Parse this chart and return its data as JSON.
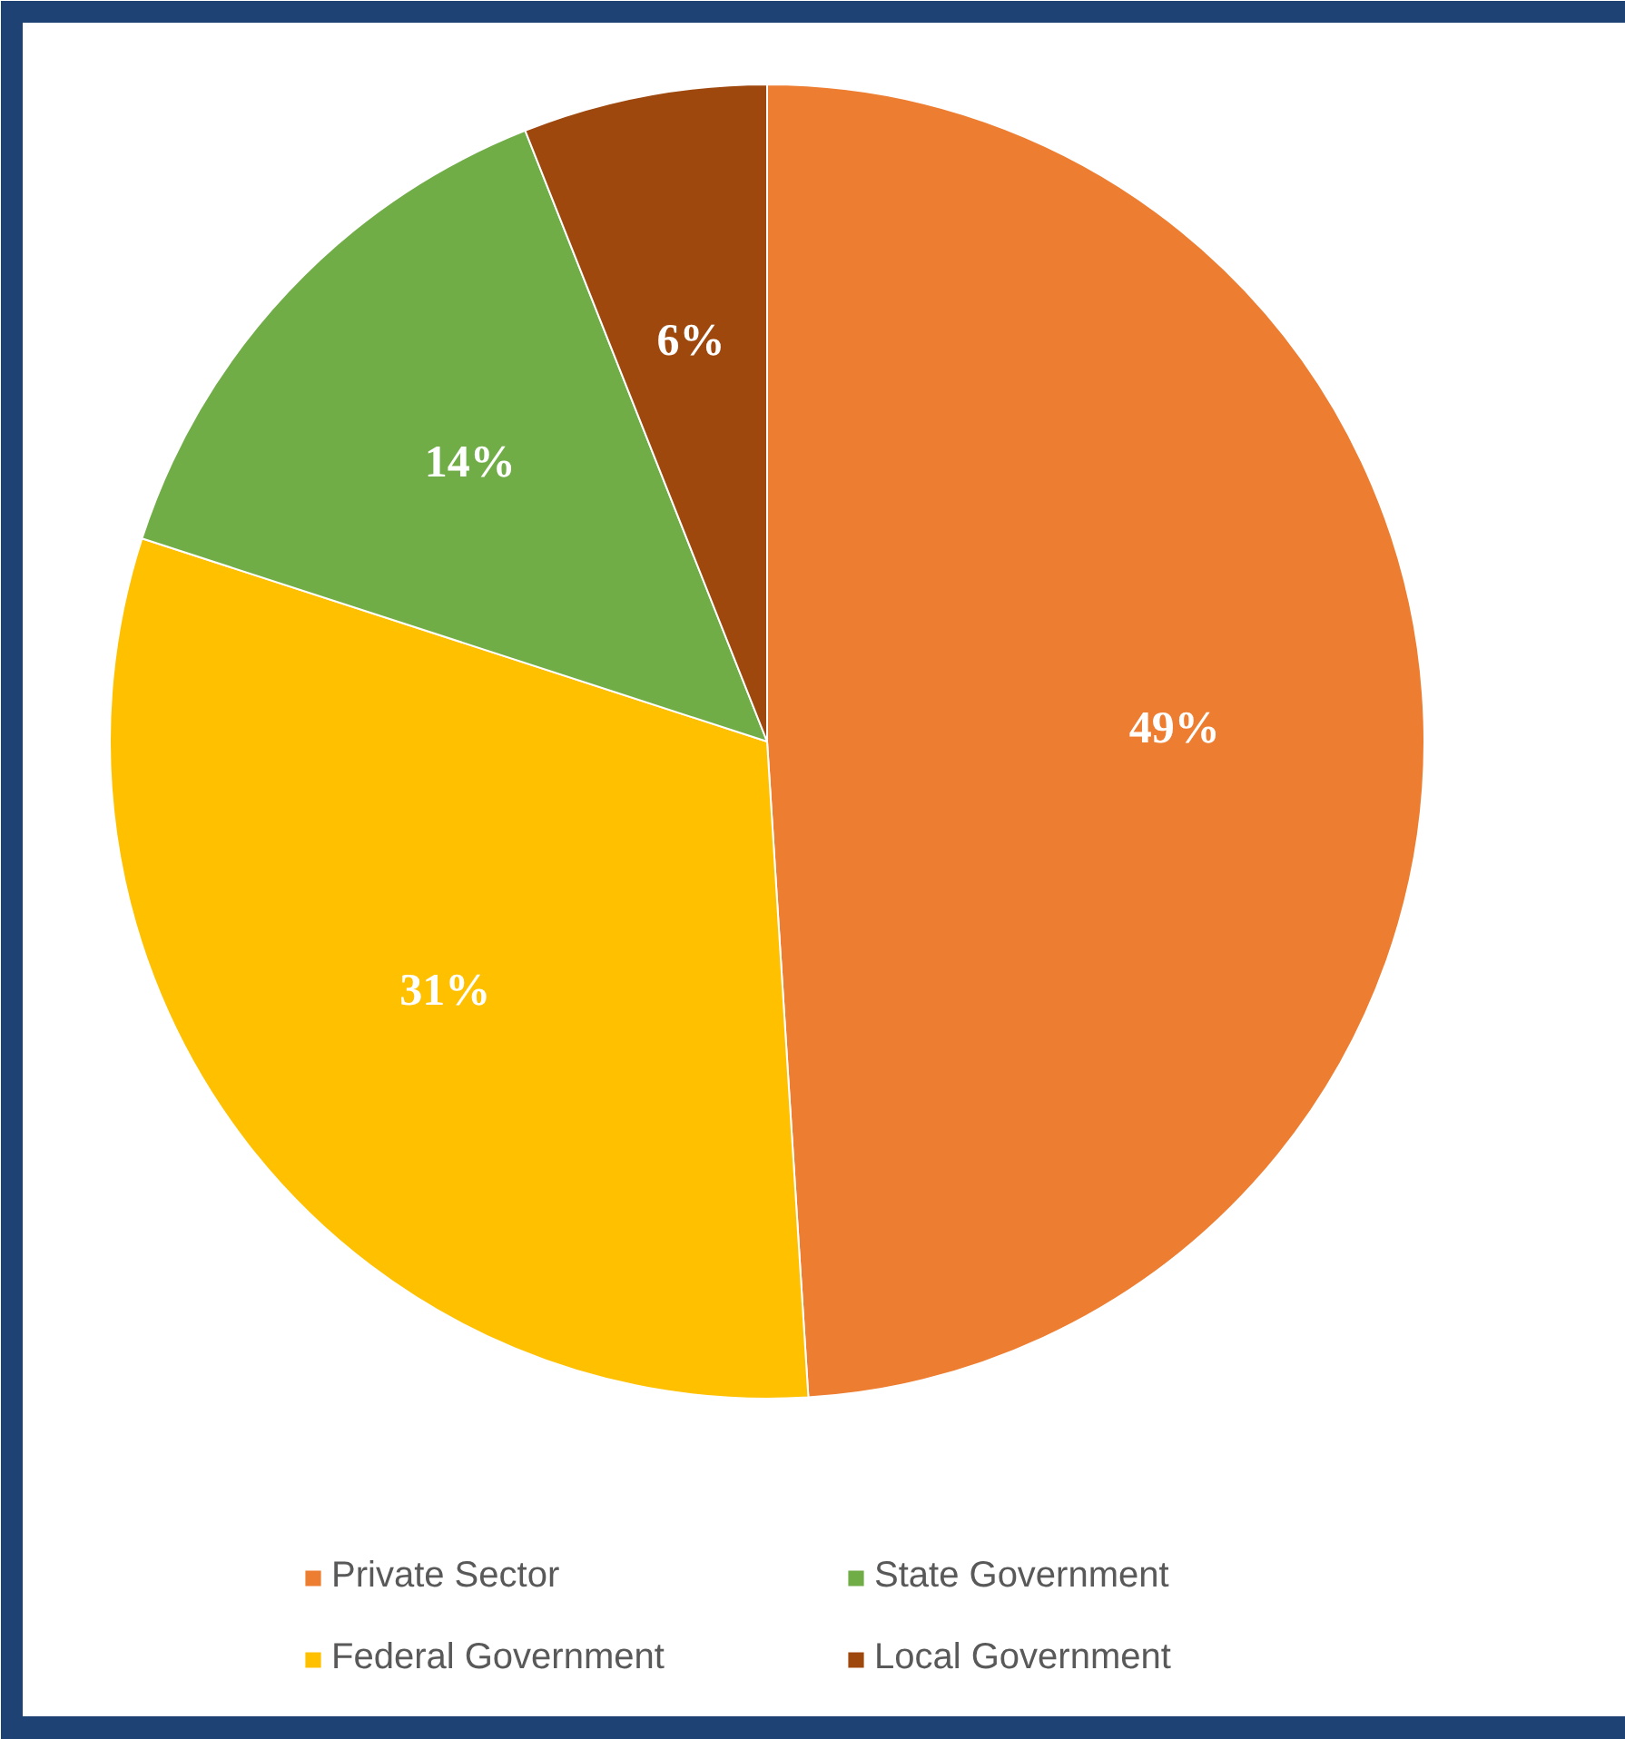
{
  "chart_data": {
    "type": "pie",
    "categories": [
      "Private Sector",
      "Federal Government",
      "State Government",
      "Local Government"
    ],
    "values": [
      49,
      31,
      14,
      6
    ],
    "value_labels": [
      "49%",
      "31%",
      "14%",
      "6%"
    ],
    "colors": [
      "#ed7d31",
      "#ffc000",
      "#70ad47",
      "#9e480e"
    ],
    "legend": "bottom"
  }
}
